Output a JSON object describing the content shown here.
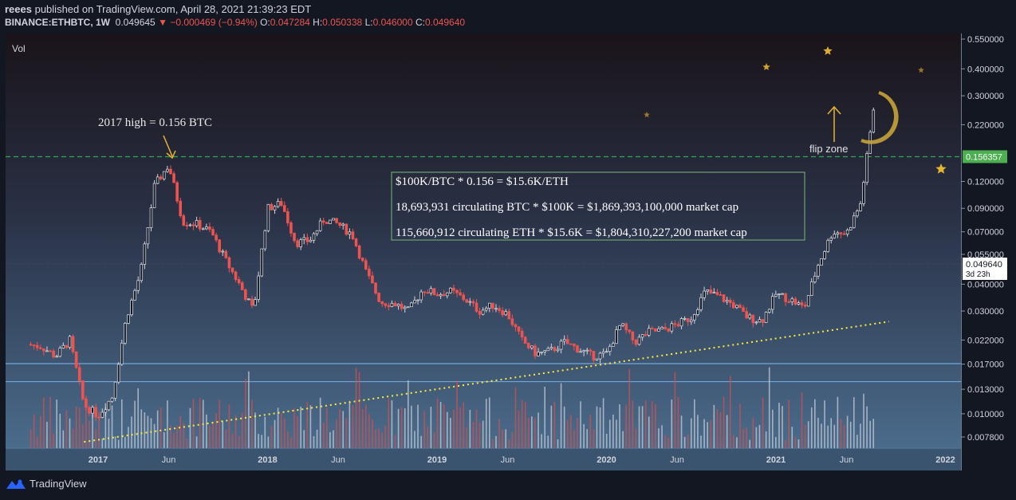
{
  "header": {
    "publisher_line": {
      "user": "reees",
      "text": " published on TradingView.com, April 28, 2021 21:39:23 EDT"
    },
    "symbol": "BINANCE:ETHBTC, 1W",
    "last": "0.049645",
    "change": "−0.000469 (−0.94%)",
    "ohlc": [
      {
        "label": "O:",
        "value": "0.047284"
      },
      {
        "label": "H:",
        "value": "0.050338"
      },
      {
        "label": "L:",
        "value": "0.046000"
      },
      {
        "label": "C:",
        "value": "0.049640"
      }
    ]
  },
  "vol_label": "Vol",
  "footer": {
    "brand": "TradingView"
  },
  "colors": {
    "background": "#131722",
    "up": "#d1d4dc",
    "down": "#ef5350",
    "dashed_level": "#26a69a",
    "trend": "#ffeb3b",
    "star": "#e6b52e",
    "moon": "#c8a33a"
  },
  "chart_data": {
    "type": "candlestick",
    "y_scale": "log",
    "ylim": [
      0.0066,
      0.57
    ],
    "x_ticks": [
      "2017",
      "Jun",
      "2018",
      "Jun",
      "2019",
      "Jun",
      "2020",
      "Jun",
      "2021",
      "Jun",
      "2022"
    ],
    "y_ticks": [
      "0.550000",
      "0.400000",
      "0.300000",
      "0.220000",
      "0.120000",
      "0.090000",
      "0.070000",
      "0.055000",
      "0.040000",
      "0.030000",
      "0.022000",
      "0.017000",
      "0.013000",
      "0.010000",
      "0.007800"
    ],
    "price_badges": [
      {
        "value": "0.156357",
        "style": "green"
      },
      {
        "value": "0.049640",
        "sub": "3d 23h",
        "style": "white"
      }
    ],
    "horizontal_levels": [
      {
        "price": 0.156357,
        "style": "dashed"
      },
      {
        "price": 0.0171,
        "style": "solid"
      },
      {
        "price": 0.0141,
        "style": "solid"
      }
    ],
    "trendline": {
      "from": [
        "2016-12",
        0.0074
      ],
      "to": [
        "2021-09",
        0.0268
      ]
    },
    "annotations": {
      "high_label": "2017 high = 0.156 BTC",
      "flip_zone": "flip zone",
      "box_lines": [
        "$100K/BTC * 0.156 = $15.6K/ETH",
        "18,693,931 circulating BTC * $100K = $1,869,393,100,000 market cap",
        "115,660,912 circulating ETH * $15.6K = $1,804,310,227,200 market cap"
      ]
    },
    "weekly_close_path": [
      [
        "2016-08",
        0.021
      ],
      [
        "2016-09",
        0.0205
      ],
      [
        "2016-10",
        0.0185
      ],
      [
        "2016-11",
        0.022
      ],
      [
        "2016-12",
        0.011
      ],
      [
        "2017-01",
        0.0098
      ],
      [
        "2017-02",
        0.012
      ],
      [
        "2017-03",
        0.028
      ],
      [
        "2017-04",
        0.045
      ],
      [
        "2017-05",
        0.115
      ],
      [
        "2017-06",
        0.143
      ],
      [
        "2017-07",
        0.078
      ],
      [
        "2017-08",
        0.076
      ],
      [
        "2017-09",
        0.07
      ],
      [
        "2017-10",
        0.052
      ],
      [
        "2017-11",
        0.04
      ],
      [
        "2017-12",
        0.03
      ],
      [
        "2018-01",
        0.09
      ],
      [
        "2018-02",
        0.095
      ],
      [
        "2018-03",
        0.062
      ],
      [
        "2018-04",
        0.064
      ],
      [
        "2018-05",
        0.08
      ],
      [
        "2018-06",
        0.076
      ],
      [
        "2018-07",
        0.068
      ],
      [
        "2018-08",
        0.045
      ],
      [
        "2018-09",
        0.033
      ],
      [
        "2018-10",
        0.0325
      ],
      [
        "2018-11",
        0.03
      ],
      [
        "2018-12",
        0.038
      ],
      [
        "2019-01",
        0.036
      ],
      [
        "2019-02",
        0.037
      ],
      [
        "2019-03",
        0.034
      ],
      [
        "2019-04",
        0.03
      ],
      [
        "2019-05",
        0.032
      ],
      [
        "2019-06",
        0.029
      ],
      [
        "2019-07",
        0.022
      ],
      [
        "2019-08",
        0.019
      ],
      [
        "2019-09",
        0.0195
      ],
      [
        "2019-10",
        0.0215
      ],
      [
        "2019-11",
        0.02
      ],
      [
        "2019-12",
        0.0185
      ],
      [
        "2020-01",
        0.019
      ],
      [
        "2020-02",
        0.026
      ],
      [
        "2020-03",
        0.0215
      ],
      [
        "2020-04",
        0.024
      ],
      [
        "2020-05",
        0.0245
      ],
      [
        "2020-06",
        0.026
      ],
      [
        "2020-07",
        0.028
      ],
      [
        "2020-08",
        0.037
      ],
      [
        "2020-09",
        0.035
      ],
      [
        "2020-10",
        0.032
      ],
      [
        "2020-11",
        0.028
      ],
      [
        "2020-12",
        0.027
      ],
      [
        "2021-01",
        0.036
      ],
      [
        "2021-02",
        0.034
      ],
      [
        "2021-03",
        0.031
      ],
      [
        "2021-04",
        0.0496
      ],
      [
        "2021-05",
        0.07
      ],
      [
        "2021-06",
        0.069
      ],
      [
        "2021-07",
        0.095
      ],
      [
        "2021-08",
        0.29
      ]
    ],
    "volume_scale": "relative"
  }
}
